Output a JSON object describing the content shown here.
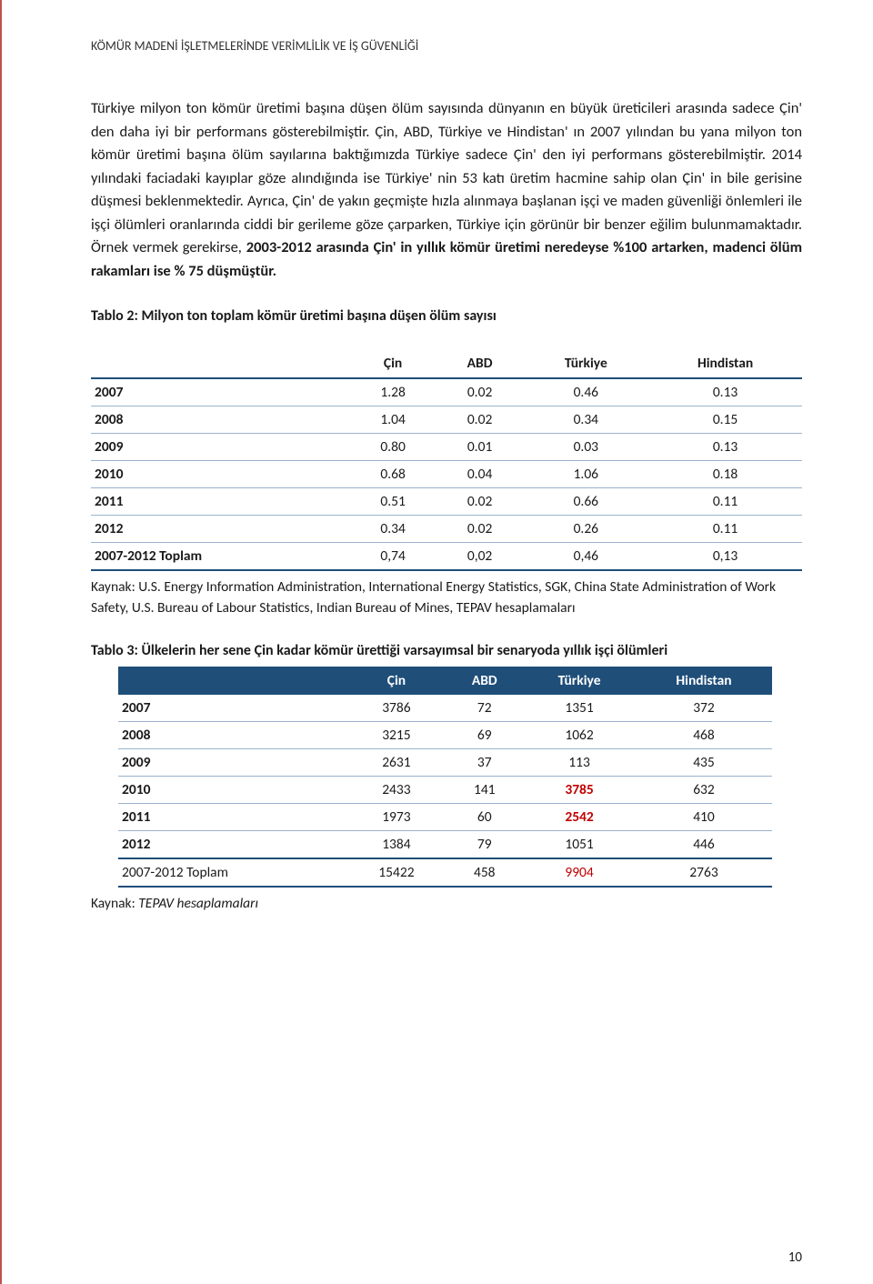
{
  "header": {
    "running_title": "KÖMÜR MADENİ İŞLETMELERİNDE VERİMLİLİK VE İŞ GÜVENLİĞİ"
  },
  "body": {
    "p1a": "Türkiye milyon ton kömür üretimi başına düşen ölüm sayısında dünyanın en büyük üreticileri arasında sadece Çin' den daha iyi bir performans gösterebilmiştir. ",
    "p1b": "Çin, ABD, Türkiye ve Hindistan' ın 2007 yılından bu yana milyon ton kömür üretimi başına ölüm sayılarına baktığımızda Türkiye sadece Çin' den iyi performans gösterebilmiştir. 2014 yılındaki faciadaki kayıplar göze alındığında ise Türkiye' nin 53 katı üretim hacmine sahip olan Çin' in bile gerisine düşmesi beklenmektedir. Ayrıca, Çin' de yakın geçmişte hızla alınmaya başlanan işçi ve maden güvenliği önlemleri ile işçi ölümleri oranlarında ciddi bir gerileme göze çarparken, Türkiye için görünür bir benzer eğilim bulunmamaktadır. Örnek vermek gerekirse, ",
    "p1c": "2003-2012 arasında Çin' in yıllık kömür üretimi neredeyse %100 artarken, madenci ölüm rakamları ise % 75 düşmüştür."
  },
  "table2": {
    "caption": "Tablo 2: Milyon ton toplam kömür üretimi başına düşen ölüm sayısı",
    "columns": [
      "",
      "Çin",
      "ABD",
      "Türkiye",
      "Hindistan"
    ],
    "rows": [
      [
        "2007",
        "1.28",
        "0.02",
        "0.46",
        "0.13"
      ],
      [
        "2008",
        "1.04",
        "0.02",
        "0.34",
        "0.15"
      ],
      [
        "2009",
        "0.80",
        "0.01",
        "0.03",
        "0.13"
      ],
      [
        "2010",
        "0.68",
        "0.04",
        "1.06",
        "0.18"
      ],
      [
        "2011",
        "0.51",
        "0.02",
        "0.66",
        "0.11"
      ],
      [
        "2012",
        "0.34",
        "0.02",
        "0.26",
        "0.11"
      ],
      [
        "2007-2012 Toplam",
        "0,74",
        "0,02",
        "0,46",
        "0,13"
      ]
    ],
    "source": "Kaynak: U.S. Energy Information Administration, International Energy Statistics, SGK, China State Administration of Work Safety, U.S. Bureau of Labour Statistics, Indian Bureau of Mines, TEPAV hesaplamaları",
    "header_border_color": "#1f4e79",
    "row_border_color": "#9ab3cc"
  },
  "table3": {
    "caption": "Tablo 3: Ülkelerin her sene Çin kadar kömür ürettiği varsayımsal bir senaryoda yıllık işçi ölümleri",
    "columns": [
      "",
      "Çin",
      "ABD",
      "Türkiye",
      "Hindistan"
    ],
    "rows": [
      [
        "2007",
        "3786",
        "72",
        "1351",
        "372"
      ],
      [
        "2008",
        "3215",
        "69",
        "1062",
        "468"
      ],
      [
        "2009",
        "2631",
        "37",
        "113",
        "435"
      ],
      [
        "2010",
        "2433",
        "141",
        "3785",
        "632"
      ],
      [
        "2011",
        "1973",
        "60",
        "2542",
        "410"
      ],
      [
        "2012",
        "1384",
        "79",
        "1051",
        "446"
      ],
      [
        "2007-2012 Toplam",
        "15422",
        "458",
        "9904",
        "2763"
      ]
    ],
    "highlight_cells": [
      [
        3,
        3
      ],
      [
        4,
        3
      ],
      [
        6,
        3
      ]
    ],
    "header_bg": "#1f4e79",
    "header_fg": "#ffffff",
    "highlight_color": "#c00000",
    "source_prefix": "Kaynak: ",
    "source_italic": "TEPAV hesaplamaları"
  },
  "page_number": "10"
}
